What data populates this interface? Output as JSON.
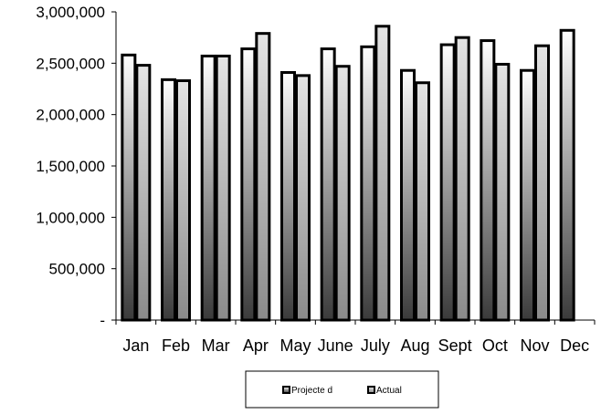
{
  "chart_data": {
    "type": "bar",
    "title": "",
    "xlabel": "",
    "ylabel": "",
    "ylim": [
      0,
      3000000
    ],
    "ytick_values": [
      0,
      500000,
      1000000,
      1500000,
      2000000,
      2500000,
      3000000
    ],
    "ytick_labels": [
      "-",
      "500,000",
      "1,000,000",
      "1,500,000",
      "2,000,000",
      "2,500,000",
      "3,000,000"
    ],
    "categories": [
      "Jan",
      "Feb",
      "Mar",
      "Apr",
      "May",
      "June",
      "July",
      "Aug",
      "Sept",
      "Oct",
      "Nov",
      "Dec"
    ],
    "series": [
      {
        "name": "Projected",
        "values": [
          2580000,
          2340000,
          2570000,
          2640000,
          2410000,
          2640000,
          2660000,
          2430000,
          2680000,
          2720000,
          2430000,
          2820000
        ]
      },
      {
        "name": "Actual",
        "values": [
          2480000,
          2330000,
          2570000,
          2790000,
          2380000,
          2470000,
          2860000,
          2310000,
          2750000,
          2490000,
          2670000,
          null
        ]
      }
    ],
    "grid": false,
    "legend_position": "bottom-center",
    "legend_entries": [
      "Projecte d",
      "Actual"
    ],
    "colors": {
      "projected_top": "#ffffff",
      "projected_bottom": "#3a3a3a",
      "actual_top": "#e4e4e4",
      "actual_bottom": "#8a8a8a",
      "outline": "#000000"
    }
  }
}
